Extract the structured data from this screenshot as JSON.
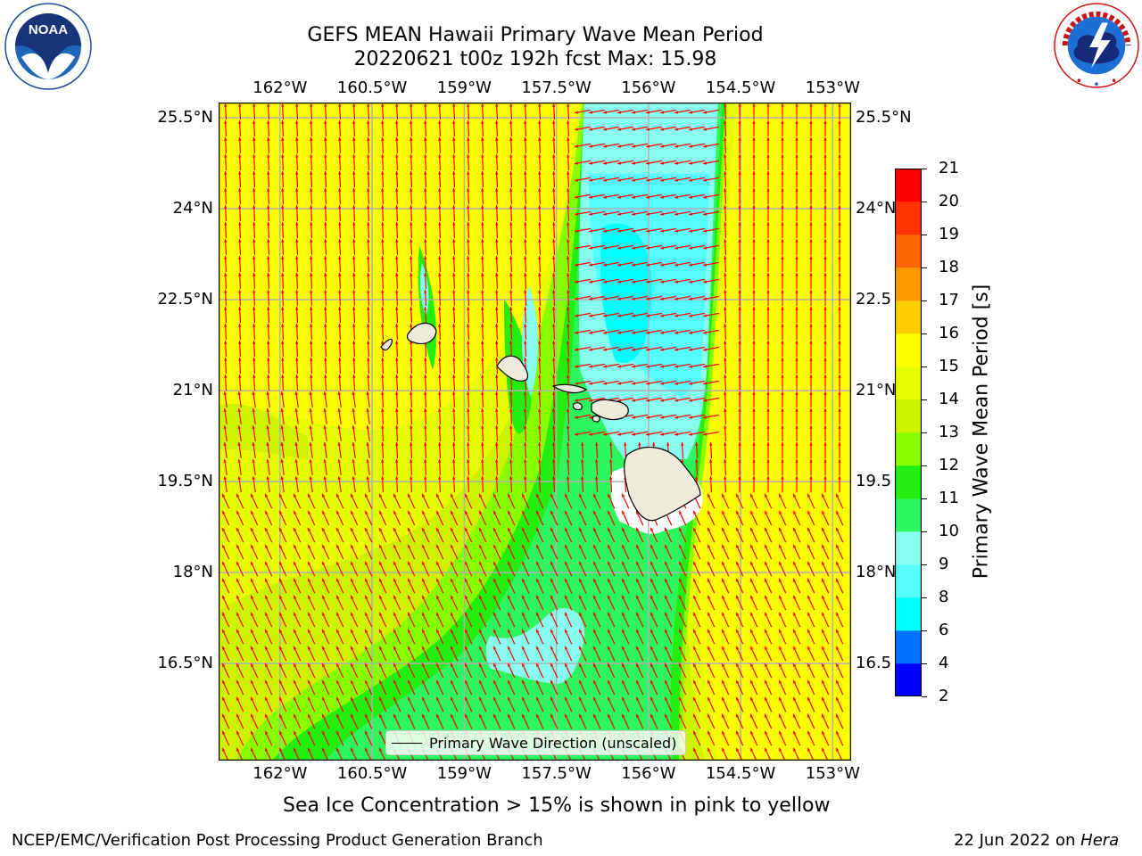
{
  "title": {
    "line1": "GEFS MEAN Hawaii Primary Wave Mean Period",
    "line2": "20220621 t00z 192h fcst   Max: 15.98"
  },
  "logos": {
    "left": {
      "name": "noaa-logo",
      "text": "NOAA",
      "ring_text": "NATIONAL OCEANIC AND ATMOSPHERIC ADMINISTRATION · U.S. DEPARTMENT OF COMMERCE"
    },
    "right": {
      "name": "nws-logo",
      "ring_text": "NATIONAL WEATHER SERVICE"
    }
  },
  "map": {
    "lon_ticks": [
      "162°W",
      "160.5°W",
      "159°W",
      "157.5°W",
      "156°W",
      "154.5°W",
      "153°W"
    ],
    "lon_values": [
      -162,
      -160.5,
      -159,
      -157.5,
      -156,
      -154.5,
      -153
    ],
    "lat_ticks": [
      "25.5°N",
      "24°N",
      "22.5°N",
      "21°N",
      "19.5°N",
      "18°N",
      "16.5°N"
    ],
    "lat_values": [
      25.5,
      24,
      22.5,
      21,
      19.5,
      18,
      16.5
    ],
    "right_lat_ticks": [
      "25.5°N",
      "24°N",
      "22.5",
      "21°N",
      "19.5",
      "18°N",
      "16.5"
    ],
    "extent": {
      "lon_min": -163,
      "lon_max": -152.7,
      "lat_min": 14.9,
      "lat_max": 25.75
    },
    "gridlines": true,
    "background_period": 15,
    "arrow_color": "#ff0000",
    "land_color": "#efebdc",
    "legend_text": "Primary Wave Direction (unscaled)"
  },
  "colorbar": {
    "label": "Primary Wave Mean Period [s]",
    "ticks": [
      "2",
      "4",
      "6",
      "8",
      "9",
      "10",
      "11",
      "12",
      "13",
      "14",
      "15",
      "16",
      "17",
      "18",
      "19",
      "20",
      "21"
    ],
    "colors": [
      "#0000ff",
      "#0073ff",
      "#00ffff",
      "#55fdff",
      "#88ffee",
      "#2cf75e",
      "#22ee11",
      "#88ff00",
      "#ccf200",
      "#e6ff00",
      "#ffff00",
      "#ffcc00",
      "#ff9900",
      "#ff6600",
      "#ff3300",
      "#ff0000"
    ]
  },
  "caption": "Sea Ice Concentration > 15% is shown in pink to yellow",
  "footer": {
    "left": "NCEP/EMC/Verification Post Processing Product Generation Branch",
    "right_prefix": "22 Jun 2022 on ",
    "right_italic": "Hera"
  }
}
